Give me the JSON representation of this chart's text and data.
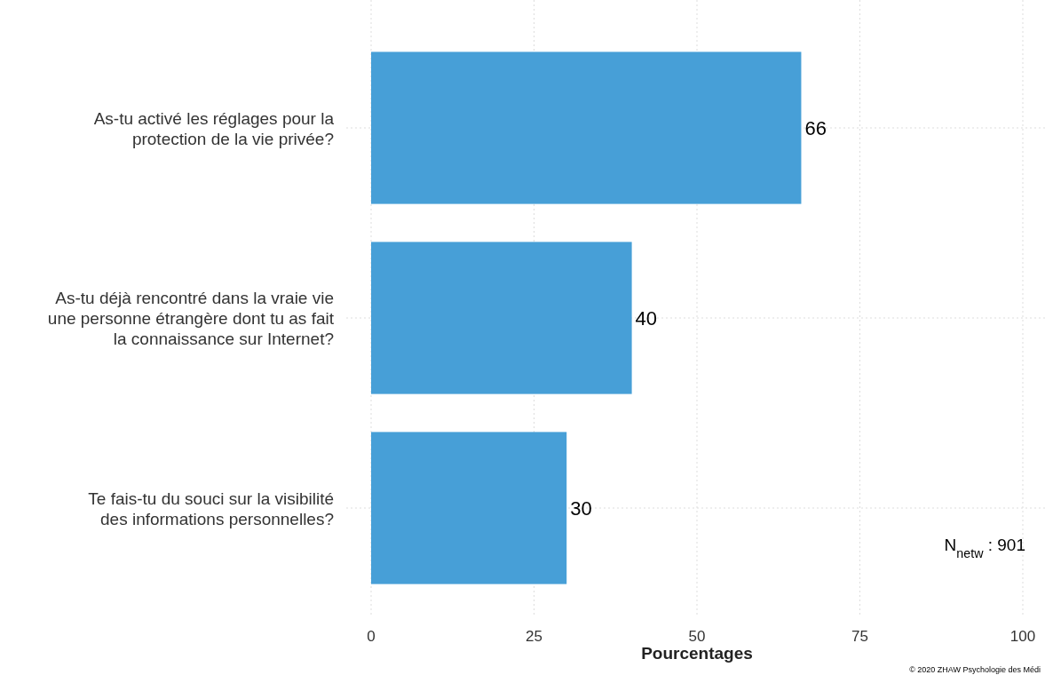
{
  "chart_data": {
    "type": "bar",
    "orientation": "horizontal",
    "xlabel": "Pourcentages",
    "categories": [
      "As-tu activé les réglages pour la\nprotection de la vie privée?",
      "As-tu déjà rencontré dans la vraie vie\nune personne étrangère dont tu as fait\nla connaissance sur Internet?",
      "Te fais-tu du souci sur la visibilité\ndes informations personnelles?"
    ],
    "values": [
      66,
      40,
      30
    ],
    "color": "#479fd7",
    "data_labels": true,
    "xlim": [
      0,
      100
    ],
    "xticks": [
      0,
      25,
      50,
      75,
      100
    ],
    "grid": true,
    "annotations": [
      "N$_{netw}$ : 901",
      "© 2020 ZHAW Psychologie des Médi"
    ]
  }
}
